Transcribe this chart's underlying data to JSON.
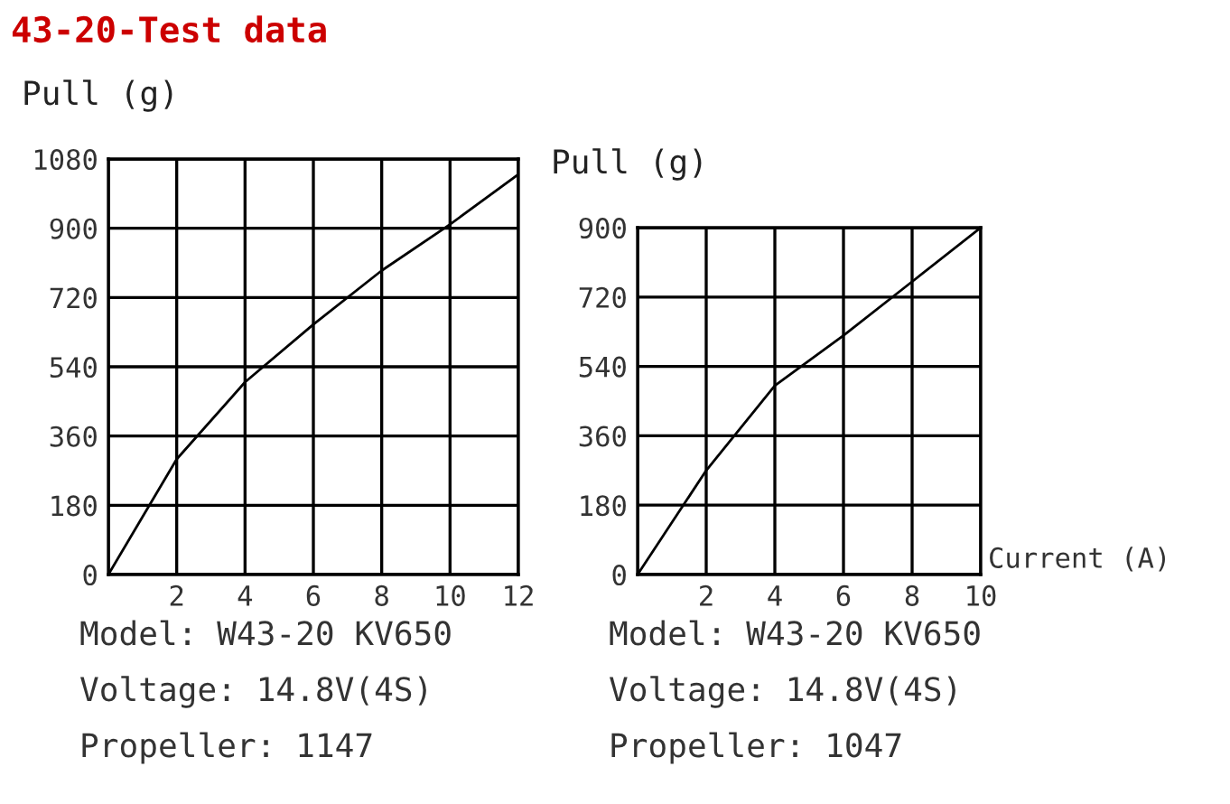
{
  "chart_data": [
    {
      "type": "line",
      "title": "43-20-Test data",
      "ylabel": "Pull (g)",
      "x": [
        0,
        2,
        4,
        6,
        8,
        10,
        12
      ],
      "series": [
        {
          "color": "#000000",
          "values": [
            0,
            300,
            500,
            650,
            790,
            910,
            1040
          ]
        }
      ],
      "xlim": [
        0,
        12
      ],
      "xticks": [
        {
          "value": 0,
          "label": null
        },
        2,
        4,
        6,
        8,
        10,
        12
      ],
      "ylim": [
        0,
        1080
      ],
      "yticks": [
        0,
        180,
        360,
        540,
        720,
        900,
        1080
      ],
      "grid": true,
      "annotations": [
        "Model: W43-20 KV650",
        "Voltage: 14.8V(4S)",
        "Propeller: 1147"
      ]
    },
    {
      "type": "line",
      "ylabel": "Pull (g)",
      "xlabel": "Current (A)",
      "x": [
        0,
        2,
        4,
        6,
        8,
        10
      ],
      "series": [
        {
          "color": "#000000",
          "values": [
            0,
            270,
            490,
            620,
            760,
            900
          ]
        }
      ],
      "xlim": [
        0,
        10
      ],
      "xticks": [
        {
          "value": 0,
          "label": null
        },
        2,
        4,
        6,
        8,
        10
      ],
      "ylim": [
        0,
        900
      ],
      "yticks": [
        0,
        180,
        360,
        540,
        720,
        900
      ],
      "grid": true,
      "annotations": [
        "Model: W43-20 KV650",
        "Voltage: 14.8V(4S)",
        "Propeller: 1047"
      ]
    }
  ]
}
